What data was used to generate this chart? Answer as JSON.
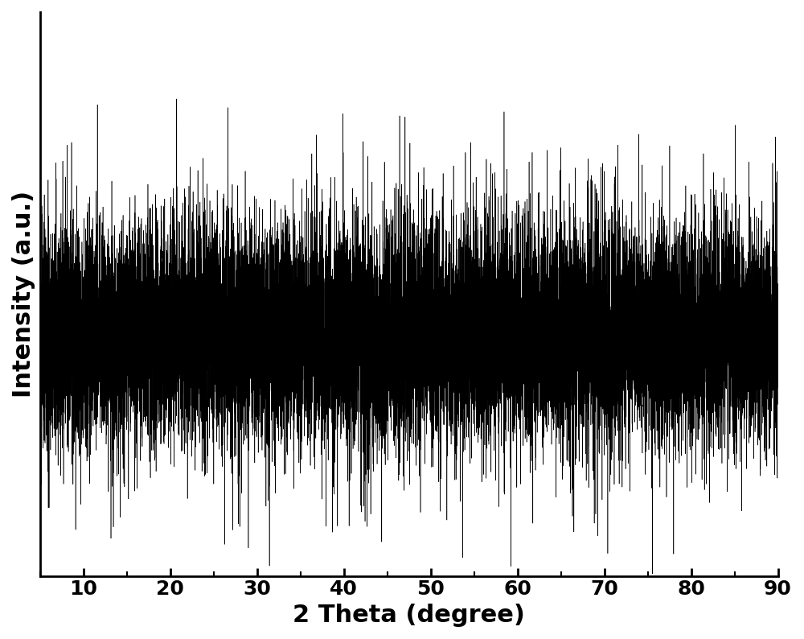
{
  "xlabel": "2 Theta (degree)",
  "ylabel": "Intensity (a.u.)",
  "xmin": 5,
  "xmax": 90,
  "xticks": [
    10,
    20,
    30,
    40,
    50,
    60,
    70,
    80,
    90
  ],
  "background_color": "#ffffff",
  "line_color": "#000000",
  "seed": 123,
  "n_points": 17000,
  "xlabel_fontsize": 22,
  "ylabel_fontsize": 22,
  "tick_fontsize": 18,
  "linewidth": 0.4,
  "base_intensity": 0.0,
  "noise_scale": 1.0,
  "ylim_min": -4.5,
  "ylim_max": 6.0
}
